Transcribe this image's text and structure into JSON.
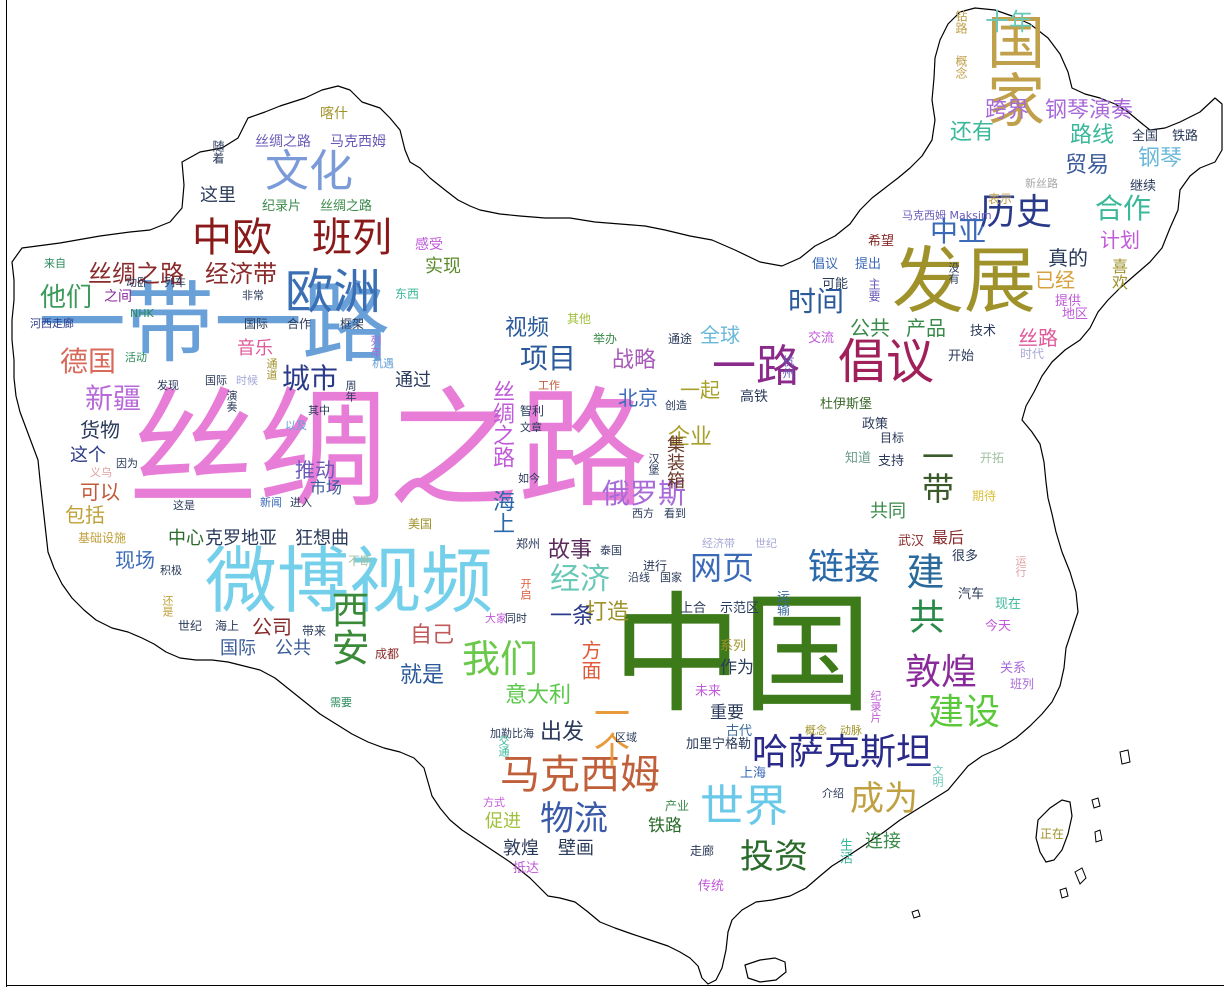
{
  "words": [
    {
      "text": "丝绸之路",
      "color": "#e87dd8"
    },
    {
      "text": "中国",
      "color": "#3d7a1a"
    },
    {
      "text": "一带一路",
      "color": "#6aa0d8"
    },
    {
      "text": "微博视频",
      "color": "#74d0ea"
    },
    {
      "text": "发展",
      "color": "#a0922a"
    },
    {
      "text": "国家",
      "color": "#c0a04a"
    },
    {
      "text": "欧洲",
      "color": "#3a6fb4"
    },
    {
      "text": "倡议",
      "color": "#a0205a"
    },
    {
      "text": "一路",
      "color": "#8a2a8a"
    },
    {
      "text": "世界",
      "color": "#6ac8e8"
    },
    {
      "text": "文化",
      "color": "#7a9ad8"
    },
    {
      "text": "中欧",
      "color": "#8a1a1a"
    },
    {
      "text": "班列",
      "color": "#8a1a1a"
    },
    {
      "text": "马克西姆",
      "color": "#c0603a"
    },
    {
      "text": "哈萨克斯坦",
      "color": "#2a2a8a"
    },
    {
      "text": "敦煌",
      "color": "#8a2a9a"
    },
    {
      "text": "建设",
      "color": "#5ac83a"
    },
    {
      "text": "链接",
      "color": "#2a6aa8"
    },
    {
      "text": "我们",
      "color": "#6ac84a"
    },
    {
      "text": "物流",
      "color": "#3a5aa8"
    },
    {
      "text": "投资",
      "color": "#2a6a2a"
    },
    {
      "text": "成为",
      "color": "#c0a040"
    },
    {
      "text": "历史",
      "color": "#2a3a8a"
    },
    {
      "text": "西安",
      "color": "#3a8a3a"
    },
    {
      "text": "俄罗斯",
      "color": "#a86ad8"
    },
    {
      "text": "网页",
      "color": "#3a6ab8"
    },
    {
      "text": "经济",
      "color": "#6ac8b8"
    },
    {
      "text": "城市",
      "color": "#2a3a8a"
    },
    {
      "text": "项目",
      "color": "#2a5a9a"
    },
    {
      "text": "德国",
      "color": "#d86a5a"
    },
    {
      "text": "新疆",
      "color": "#b86ad8"
    },
    {
      "text": "时间",
      "color": "#2a5a9a"
    },
    {
      "text": "合作",
      "color": "#3ab89a"
    },
    {
      "text": "中亚",
      "color": "#3a6ab8"
    },
    {
      "text": "一个",
      "color": "#e89a3a"
    },
    {
      "text": "一带",
      "color": "#3a5a2a"
    },
    {
      "text": "建",
      "color": "#2a6a9a"
    },
    {
      "text": "共",
      "color": "#2a8a4a"
    },
    {
      "text": "十年",
      "color": "#6ac8b8"
    },
    {
      "text": "他们",
      "color": "#3a9a5a"
    },
    {
      "text": "丝绸之路",
      "color": "#8a2a2a"
    },
    {
      "text": "经济带",
      "color": "#8a2a2a"
    },
    {
      "text": "视频",
      "color": "#2a5a9a"
    },
    {
      "text": "战略",
      "color": "#a85ab8"
    },
    {
      "text": "全球",
      "color": "#6ab8d8"
    },
    {
      "text": "公共",
      "color": "#3a8a4a"
    },
    {
      "text": "产品",
      "color": "#3a8a4a"
    },
    {
      "text": "还有",
      "color": "#3ab89a"
    },
    {
      "text": "路线",
      "color": "#3ab89a"
    },
    {
      "text": "贸易",
      "color": "#3a5a9a"
    },
    {
      "text": "钢琴",
      "color": "#6ab8d8"
    },
    {
      "text": "跨界",
      "color": "#a86ad8"
    },
    {
      "text": "钢琴演奏",
      "color": "#a86ad8"
    },
    {
      "text": "真的",
      "color": "#2a3a5a"
    },
    {
      "text": "计划",
      "color": "#c05ad8"
    },
    {
      "text": "已经",
      "color": "#d8a03a"
    },
    {
      "text": "丝路",
      "color": "#e05a9a"
    },
    {
      "text": "企业",
      "color": "#a8a02a"
    },
    {
      "text": "一起",
      "color": "#a8a02a"
    },
    {
      "text": "北京",
      "color": "#3a6ab8"
    },
    {
      "text": "海上",
      "color": "#2a6aa8"
    },
    {
      "text": "丝绸之路",
      "color": "#c05ad8"
    },
    {
      "text": "集装箱",
      "color": "#6a3a2a"
    },
    {
      "text": "故事",
      "color": "#5a2a5a"
    },
    {
      "text": "打造",
      "color": "#a0922a"
    },
    {
      "text": "一条",
      "color": "#2a3a8a"
    },
    {
      "text": "方面",
      "color": "#e05a3a"
    },
    {
      "text": "意大利",
      "color": "#5ac84a"
    },
    {
      "text": "出发",
      "color": "#2a3a5a"
    },
    {
      "text": "自己",
      "color": "#c05a5a"
    },
    {
      "text": "就是",
      "color": "#2a5a9a"
    },
    {
      "text": "公司",
      "color": "#8a2a2a"
    },
    {
      "text": "国际",
      "color": "#3a5a9a"
    },
    {
      "text": "公共",
      "color": "#3a5a9a"
    },
    {
      "text": "中心",
      "color": "#2a6a2a"
    },
    {
      "text": "克罗地亚",
      "color": "#2a3a5a"
    },
    {
      "text": "狂想曲",
      "color": "#2a3a5a"
    },
    {
      "text": "现场",
      "color": "#3a6ab8"
    },
    {
      "text": "可以",
      "color": "#c05a3a"
    },
    {
      "text": "包括",
      "color": "#c0a03a"
    },
    {
      "text": "货物",
      "color": "#2a3a5a"
    },
    {
      "text": "这个",
      "color": "#2a3a8a"
    },
    {
      "text": "推动",
      "color": "#6a5ab8"
    },
    {
      "text": "市场",
      "color": "#3a5a9a"
    },
    {
      "text": "音乐",
      "color": "#e05a9a"
    },
    {
      "text": "通过",
      "color": "#2a3a5a"
    },
    {
      "text": "实现",
      "color": "#5a8a2a"
    },
    {
      "text": "感受",
      "color": "#c05ad8"
    },
    {
      "text": "这里",
      "color": "#2a3a5a"
    },
    {
      "text": "纪录片",
      "color": "#3a8a4a"
    },
    {
      "text": "丝绸之路",
      "color": "#3a8a4a"
    },
    {
      "text": "丝绸之路",
      "color": "#6a5ab8"
    },
    {
      "text": "马克西姆",
      "color": "#6a5ab8"
    },
    {
      "text": "喀什",
      "color": "#a0922a"
    },
    {
      "text": "随着",
      "color": "#2a3a5a"
    },
    {
      "text": "钻路",
      "color": "#c0a04a"
    },
    {
      "text": "概念",
      "color": "#c0a04a"
    },
    {
      "text": "全国",
      "color": "#2a3a5a"
    },
    {
      "text": "铁路",
      "color": "#2a3a5a"
    },
    {
      "text": "继续",
      "color": "#2a3a5a"
    },
    {
      "text": "表示",
      "color": "#c0a04a"
    },
    {
      "text": "新丝路",
      "color": "#a8a8a8"
    },
    {
      "text": "马克西姆 Maksim",
      "color": "#6a5ab8"
    },
    {
      "text": "希望",
      "color": "#8a2a2a"
    },
    {
      "text": "倡议",
      "color": "#3a6ab8"
    },
    {
      "text": "提出",
      "color": "#3a6ab8"
    },
    {
      "text": "可能",
      "color": "#2a3a5a"
    },
    {
      "text": "主要",
      "color": "#6a5ab8"
    },
    {
      "text": "交流",
      "color": "#c05ad8"
    },
    {
      "text": "技术",
      "color": "#2a3a5a"
    },
    {
      "text": "开始",
      "color": "#2a3a5a"
    },
    {
      "text": "喜欢",
      "color": "#a0922a"
    },
    {
      "text": "提供",
      "color": "#c05ad8"
    },
    {
      "text": "地区",
      "color": "#c05ad8"
    },
    {
      "text": "时代",
      "color": "#a8a8d8"
    },
    {
      "text": "高铁",
      "color": "#2a3a5a"
    },
    {
      "text": "杜伊斯堡",
      "color": "#3a6a2a"
    },
    {
      "text": "政策",
      "color": "#2a3a5a"
    },
    {
      "text": "目标",
      "color": "#2a3a5a"
    },
    {
      "text": "知道",
      "color": "#6a9a8a"
    },
    {
      "text": "支持",
      "color": "#2a3a5a"
    },
    {
      "text": "开拓",
      "color": "#a0c0a0"
    },
    {
      "text": "期待",
      "color": "#d8c03a"
    },
    {
      "text": "武汉",
      "color": "#8a2a2a"
    },
    {
      "text": "最后",
      "color": "#8a2a2a"
    },
    {
      "text": "很多",
      "color": "#2a3a5a"
    },
    {
      "text": "共同",
      "color": "#3a8a4a"
    },
    {
      "text": "汽车",
      "color": "#2a3a5a"
    },
    {
      "text": "现在",
      "color": "#3ab89a"
    },
    {
      "text": "今天",
      "color": "#c05ad8"
    },
    {
      "text": "关系",
      "color": "#a86ad8"
    },
    {
      "text": "班列",
      "color": "#a86ad8"
    },
    {
      "text": "上合",
      "color": "#2a3a5a"
    },
    {
      "text": "示范区",
      "color": "#2a3a5a"
    },
    {
      "text": "运输",
      "color": "#3a6a9a"
    },
    {
      "text": "系列",
      "color": "#a0922a"
    },
    {
      "text": "作为",
      "color": "#2a3a5a"
    },
    {
      "text": "重要",
      "color": "#2a3a5a"
    },
    {
      "text": "古代",
      "color": "#3a6a9a"
    },
    {
      "text": "未来",
      "color": "#c05ad8"
    },
    {
      "text": "加里宁格勒",
      "color": "#2a3a5a"
    },
    {
      "text": "概念",
      "color": "#a0922a"
    },
    {
      "text": "动脉",
      "color": "#a0922a"
    },
    {
      "text": "上海",
      "color": "#3a6ab8"
    },
    {
      "text": "介绍",
      "color": "#2a3a5a"
    },
    {
      "text": "产业",
      "color": "#3a8a4a"
    },
    {
      "text": "走廊",
      "color": "#2a3a5a"
    },
    {
      "text": "传统",
      "color": "#c05ad8"
    },
    {
      "text": "铁路",
      "color": "#2a6a2a"
    },
    {
      "text": "连接",
      "color": "#3a8a4a"
    },
    {
      "text": "生活",
      "color": "#3ab89a"
    },
    {
      "text": "正在",
      "color": "#a0922a"
    },
    {
      "text": "敦煌",
      "color": "#2a3a5a"
    },
    {
      "text": "壁画",
      "color": "#2a3a5a"
    },
    {
      "text": "促进",
      "color": "#a0c03a"
    },
    {
      "text": "抵达",
      "color": "#c05ad8"
    },
    {
      "text": "方式",
      "color": "#c05ad8"
    },
    {
      "text": "加勒比海",
      "color": "#2a3a5a"
    },
    {
      "text": "区域",
      "color": "#2a3a5a"
    },
    {
      "text": "郑州",
      "color": "#2a3a5a"
    },
    {
      "text": "泰国",
      "color": "#2a3a5a"
    },
    {
      "text": "进行",
      "color": "#2a3a5a"
    },
    {
      "text": "沿线",
      "color": "#2a3a5a"
    },
    {
      "text": "国家",
      "color": "#2a3a5a"
    },
    {
      "text": "经济带",
      "color": "#a8a8d8"
    },
    {
      "text": "世纪",
      "color": "#a8a8d8"
    },
    {
      "text": "大家",
      "color": "#c05ad8"
    },
    {
      "text": "同时",
      "color": "#2a3a5a"
    },
    {
      "text": "成都",
      "color": "#8a2a2a"
    },
    {
      "text": "带来",
      "color": "#2a3a5a"
    },
    {
      "text": "世纪",
      "color": "#2a3a5a"
    },
    {
      "text": "海上",
      "color": "#2a3a5a"
    },
    {
      "text": "积极",
      "color": "#2a3a5a"
    },
    {
      "text": "还是",
      "color": "#c0a03a"
    },
    {
      "text": "不断",
      "color": "#a0c0a0"
    },
    {
      "text": "美国",
      "color": "#a0922a"
    },
    {
      "text": "基础设施",
      "color": "#c0a03a"
    },
    {
      "text": "新闻",
      "color": "#3a6ab8"
    },
    {
      "text": "进入",
      "color": "#2a3a5a"
    },
    {
      "text": "这是",
      "color": "#2a3a5a"
    },
    {
      "text": "因为",
      "color": "#2a3a5a"
    },
    {
      "text": "义乌",
      "color": "#e0a0a0"
    },
    {
      "text": "发现",
      "color": "#2a3a5a"
    },
    {
      "text": "活动",
      "color": "#2a8a5a"
    },
    {
      "text": "国际",
      "color": "#2a3a5a"
    },
    {
      "text": "时候",
      "color": "#a8a8d8"
    },
    {
      "text": "以及",
      "color": "#6aa0d8"
    },
    {
      "text": "其中",
      "color": "#2a3a5a"
    },
    {
      "text": "通道",
      "color": "#a0922a"
    },
    {
      "text": "演奏",
      "color": "#2a3a5a"
    },
    {
      "text": "周年",
      "color": "#2a3a5a"
    },
    {
      "text": "列车",
      "color": "#a86ad8"
    },
    {
      "text": "机遇",
      "color": "#6aa0d8"
    },
    {
      "text": "东西",
      "color": "#3ab89a"
    },
    {
      "text": "国际",
      "color": "#2a3a5a"
    },
    {
      "text": "合作",
      "color": "#2a3a5a"
    },
    {
      "text": "框架",
      "color": "#2a3a5a"
    },
    {
      "text": "非常",
      "color": "#2a3a5a"
    },
    {
      "text": "NHK",
      "color": "#2a8a5a"
    },
    {
      "text": "河西走廊",
      "color": "#2a3a8a"
    },
    {
      "text": "动卧",
      "color": "#2a3a5a"
    },
    {
      "text": "列车",
      "color": "#2a3a5a"
    },
    {
      "text": "来自",
      "color": "#2a8a5a"
    },
    {
      "text": "之间",
      "color": "#8a2a9a"
    },
    {
      "text": "其他",
      "color": "#a0c03a"
    },
    {
      "text": "举办",
      "color": "#3a8a4a"
    },
    {
      "text": "通途",
      "color": "#2a3a5a"
    },
    {
      "text": "工作",
      "color": "#c05a3a"
    },
    {
      "text": "智利",
      "color": "#2a3a5a"
    },
    {
      "text": "文章",
      "color": "#2a3a5a"
    },
    {
      "text": "创造",
      "color": "#2a3a5a"
    },
    {
      "text": "汉堡",
      "color": "#2a3a5a"
    },
    {
      "text": "如今",
      "color": "#2a3a5a"
    },
    {
      "text": "西方",
      "color": "#2a3a5a"
    },
    {
      "text": "看到",
      "color": "#2a3a5a"
    },
    {
      "text": "开启",
      "color": "#e05a3a"
    },
    {
      "text": "交通",
      "color": "#3ab89a"
    },
    {
      "text": "需要",
      "color": "#2a8a5a"
    },
    {
      "text": "杭州",
      "color": "#6a5ab8"
    },
    {
      "text": "没有",
      "color": "#2a3a5a"
    },
    {
      "text": "纪录片",
      "color": "#c05ad8"
    },
    {
      "text": "文明",
      "color": "#6ac8b8"
    },
    {
      "text": "运行",
      "color": "#e0a0a0"
    }
  ]
}
